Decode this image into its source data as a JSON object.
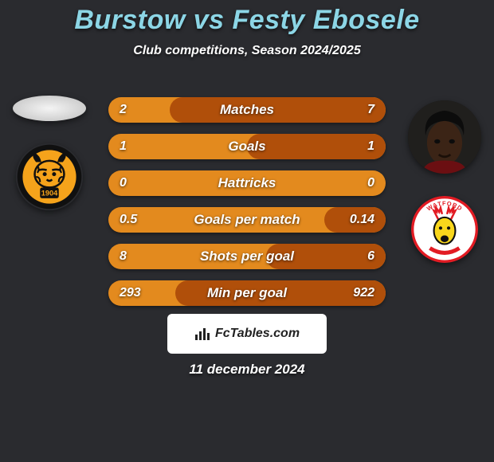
{
  "title": {
    "text": "Burstow vs Festy Ebosele",
    "fontsize": 34,
    "color": "#8cd6e6"
  },
  "subtitle": {
    "text": "Club competitions, Season 2024/2025",
    "fontsize": 16,
    "color": "#ffffff"
  },
  "date": {
    "text": "11 december 2024",
    "fontsize": 17,
    "color": "#ffffff"
  },
  "attribution": {
    "text": "FcTables.com",
    "bg": "#ffffff",
    "text_color": "#222222",
    "fontsize": 16
  },
  "background_color": "#2a2b2f",
  "players": {
    "left": {
      "name": "Burstow",
      "club_badge": {
        "ring_color": "#101010",
        "inner_bg": "#f5a31b",
        "year_text": "1904",
        "year_color": "#101010"
      }
    },
    "right": {
      "name": "Festy Ebosele",
      "club_badge": {
        "bg": "#ffffff",
        "primary": "#e21b23",
        "accent": "#f9d71c",
        "text_top": "WATFORD"
      }
    }
  },
  "stats": {
    "bar": {
      "height": 32,
      "radius": 16,
      "left_color": "#e38a1e",
      "right_color": "#b04f0a",
      "text_color": "#ffffff",
      "label_fontsize": 17,
      "value_fontsize": 16
    },
    "rows": [
      {
        "label": "Matches",
        "left": "2",
        "right": "7",
        "right_fill_pct": 78
      },
      {
        "label": "Goals",
        "left": "1",
        "right": "1",
        "right_fill_pct": 50
      },
      {
        "label": "Hattricks",
        "left": "0",
        "right": "0",
        "right_fill_pct": 0
      },
      {
        "label": "Goals per match",
        "left": "0.5",
        "right": "0.14",
        "right_fill_pct": 22
      },
      {
        "label": "Shots per goal",
        "left": "8",
        "right": "6",
        "right_fill_pct": 43
      },
      {
        "label": "Min per goal",
        "left": "293",
        "right": "922",
        "right_fill_pct": 76
      }
    ]
  }
}
